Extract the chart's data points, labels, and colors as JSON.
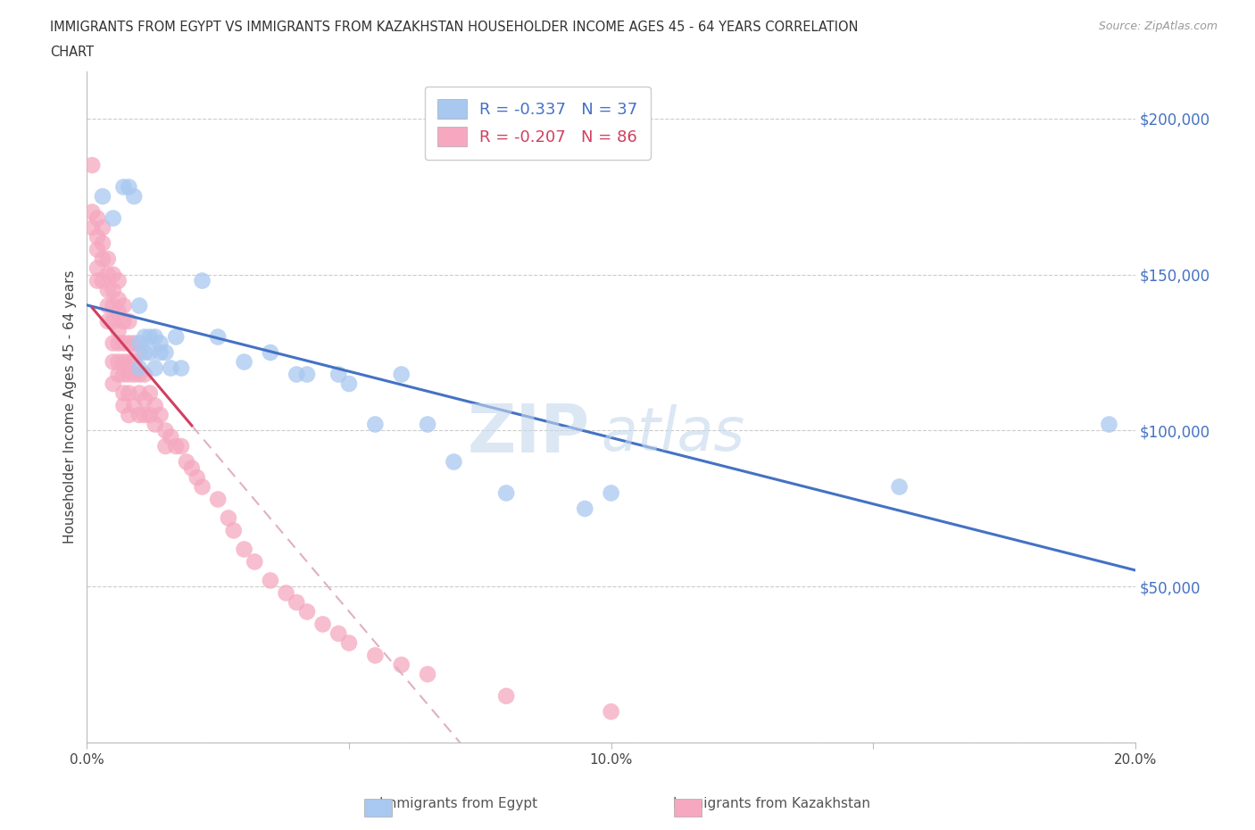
{
  "title_line1": "IMMIGRANTS FROM EGYPT VS IMMIGRANTS FROM KAZAKHSTAN HOUSEHOLDER INCOME AGES 45 - 64 YEARS CORRELATION",
  "title_line2": "CHART",
  "source": "Source: ZipAtlas.com",
  "ylabel": "Householder Income Ages 45 - 64 years",
  "xlim": [
    0.0,
    0.2
  ],
  "ylim": [
    0,
    215000
  ],
  "yticks": [
    0,
    50000,
    100000,
    150000,
    200000
  ],
  "ytick_labels": [
    "",
    "$50,000",
    "$100,000",
    "$150,000",
    "$200,000"
  ],
  "xticks": [
    0.0,
    0.05,
    0.1,
    0.15,
    0.2
  ],
  "xtick_labels": [
    "0.0%",
    "",
    "10.0%",
    "",
    "20.0%"
  ],
  "egypt_R": -0.337,
  "egypt_N": 37,
  "kaz_R": -0.207,
  "kaz_N": 86,
  "egypt_color": "#a8c8f0",
  "kaz_color": "#f5a8c0",
  "egypt_line_color": "#4472c4",
  "kaz_line_color": "#d04060",
  "kaz_dash_line_color": "#e0b0c0",
  "egypt_x": [
    0.003,
    0.005,
    0.007,
    0.008,
    0.009,
    0.01,
    0.01,
    0.01,
    0.011,
    0.011,
    0.012,
    0.012,
    0.013,
    0.013,
    0.014,
    0.014,
    0.015,
    0.016,
    0.017,
    0.018,
    0.022,
    0.025,
    0.03,
    0.035,
    0.04,
    0.042,
    0.048,
    0.05,
    0.055,
    0.06,
    0.065,
    0.07,
    0.08,
    0.095,
    0.1,
    0.155,
    0.195
  ],
  "egypt_y": [
    175000,
    168000,
    178000,
    178000,
    175000,
    120000,
    128000,
    140000,
    125000,
    130000,
    125000,
    130000,
    120000,
    130000,
    128000,
    125000,
    125000,
    120000,
    130000,
    120000,
    148000,
    130000,
    122000,
    125000,
    118000,
    118000,
    118000,
    115000,
    102000,
    118000,
    102000,
    90000,
    80000,
    75000,
    80000,
    82000,
    102000
  ],
  "kaz_x": [
    0.001,
    0.001,
    0.001,
    0.002,
    0.002,
    0.002,
    0.002,
    0.002,
    0.003,
    0.003,
    0.003,
    0.003,
    0.004,
    0.004,
    0.004,
    0.004,
    0.004,
    0.005,
    0.005,
    0.005,
    0.005,
    0.005,
    0.005,
    0.005,
    0.006,
    0.006,
    0.006,
    0.006,
    0.006,
    0.006,
    0.006,
    0.007,
    0.007,
    0.007,
    0.007,
    0.007,
    0.007,
    0.007,
    0.008,
    0.008,
    0.008,
    0.008,
    0.008,
    0.008,
    0.009,
    0.009,
    0.009,
    0.009,
    0.01,
    0.01,
    0.01,
    0.01,
    0.011,
    0.011,
    0.011,
    0.012,
    0.012,
    0.013,
    0.013,
    0.014,
    0.015,
    0.015,
    0.016,
    0.017,
    0.018,
    0.019,
    0.02,
    0.021,
    0.022,
    0.025,
    0.027,
    0.028,
    0.03,
    0.032,
    0.035,
    0.038,
    0.04,
    0.042,
    0.045,
    0.048,
    0.05,
    0.055,
    0.06,
    0.065,
    0.08,
    0.1
  ],
  "kaz_y": [
    185000,
    170000,
    165000,
    168000,
    162000,
    158000,
    152000,
    148000,
    165000,
    160000,
    155000,
    148000,
    155000,
    150000,
    145000,
    140000,
    135000,
    150000,
    145000,
    140000,
    135000,
    128000,
    122000,
    115000,
    148000,
    142000,
    138000,
    132000,
    128000,
    122000,
    118000,
    140000,
    135000,
    128000,
    122000,
    118000,
    112000,
    108000,
    135000,
    128000,
    122000,
    118000,
    112000,
    105000,
    128000,
    122000,
    118000,
    108000,
    125000,
    118000,
    112000,
    105000,
    118000,
    110000,
    105000,
    112000,
    105000,
    108000,
    102000,
    105000,
    100000,
    95000,
    98000,
    95000,
    95000,
    90000,
    88000,
    85000,
    82000,
    78000,
    72000,
    68000,
    62000,
    58000,
    52000,
    48000,
    45000,
    42000,
    38000,
    35000,
    32000,
    28000,
    25000,
    22000,
    15000,
    10000
  ],
  "watermark_top": "ZIP",
  "watermark_bot": "atlas",
  "background_color": "#ffffff",
  "grid_color": "#cccccc"
}
